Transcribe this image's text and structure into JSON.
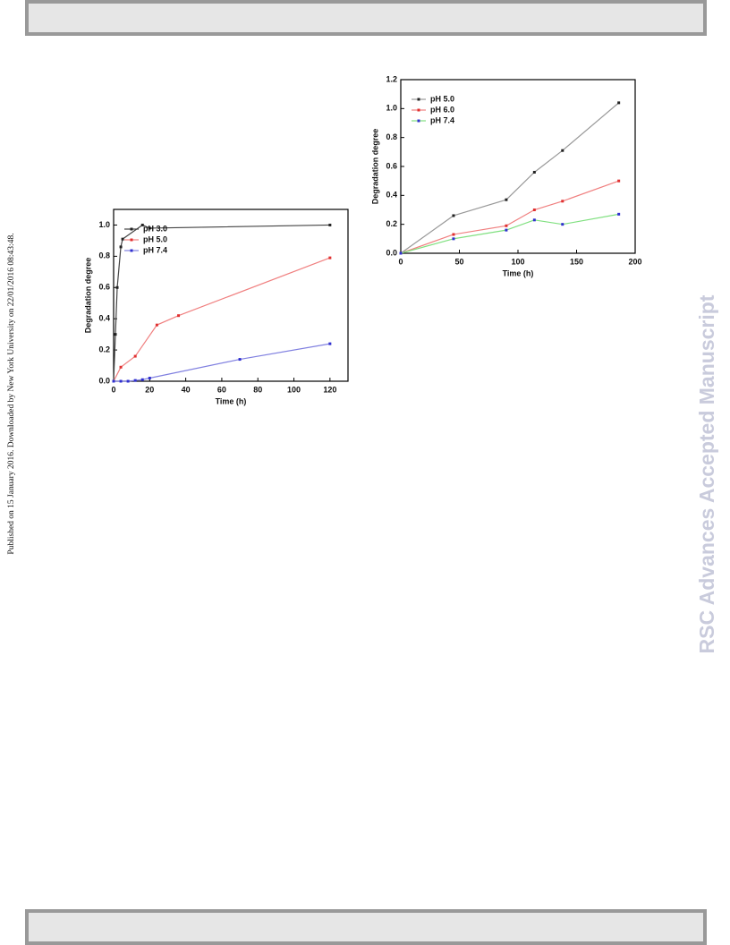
{
  "side_note": "Published on 15 January 2016. Downloaded by New York University on 22/01/2016 08:43:48.",
  "watermark": "RSC Advances Accepted Manuscript",
  "chart_data": [
    {
      "type": "line",
      "xlabel": "Time (h)",
      "ylabel": "Degradation degree",
      "xlim": [
        0,
        130
      ],
      "xticks": [
        0,
        20,
        40,
        60,
        80,
        100,
        120
      ],
      "ylim": [
        0,
        1.1
      ],
      "yticks": [
        {
          "value": 0,
          "label": "0.0"
        },
        0.2,
        0.4,
        0.6,
        0.8,
        {
          "value": 1,
          "label": "1.0"
        }
      ],
      "legend": "upper left",
      "series": [
        {
          "name": "pH 3.0",
          "color": "#222222",
          "line_color": "#444444",
          "x": [
            0,
            1,
            2,
            4,
            5,
            16,
            20,
            120
          ],
          "values": [
            0,
            0.3,
            0.6,
            0.86,
            0.91,
            1.0,
            0.98,
            1.0
          ]
        },
        {
          "name": "pH 5.0",
          "color": "#e03030",
          "line_color": "#f08080",
          "x": [
            0,
            4,
            12,
            24,
            36,
            120
          ],
          "values": [
            0,
            0.09,
            0.16,
            0.36,
            0.42,
            0.79
          ]
        },
        {
          "name": "pH 7.4",
          "color": "#3030d0",
          "line_color": "#8080e0",
          "x": [
            0,
            4,
            8,
            12,
            16,
            20,
            70,
            120
          ],
          "values": [
            0,
            0,
            0,
            0.005,
            0.01,
            0.02,
            0.14,
            0.24
          ]
        }
      ]
    },
    {
      "type": "line",
      "xlabel": "Time (h)",
      "ylabel": "Degradation degree",
      "xlim": [
        0,
        200
      ],
      "xticks": [
        0,
        50,
        100,
        150,
        200
      ],
      "ylim": [
        0,
        1.2
      ],
      "yticks": [
        {
          "value": 0,
          "label": "0.0"
        },
        0.2,
        0.4,
        0.6,
        0.8,
        {
          "value": 1,
          "label": "1.0"
        },
        1.2
      ],
      "legend": "upper left",
      "series": [
        {
          "name": "pH 5.0",
          "color": "#222222",
          "line_color": "#999999",
          "x": [
            0,
            45,
            90,
            114,
            138,
            186
          ],
          "values": [
            0,
            0.26,
            0.37,
            0.56,
            0.71,
            1.04
          ]
        },
        {
          "name": "pH 6.0",
          "color": "#e03030",
          "line_color": "#f08080",
          "x": [
            0,
            45,
            90,
            114,
            138,
            186
          ],
          "values": [
            0,
            0.13,
            0.19,
            0.3,
            0.36,
            0.5
          ]
        },
        {
          "name": "pH 7.4",
          "color": "#3030d0",
          "line_color": "#80e080",
          "x": [
            0,
            45,
            90,
            114,
            138,
            186
          ],
          "values": [
            0,
            0.1,
            0.16,
            0.23,
            0.2,
            0.27
          ]
        }
      ]
    }
  ]
}
